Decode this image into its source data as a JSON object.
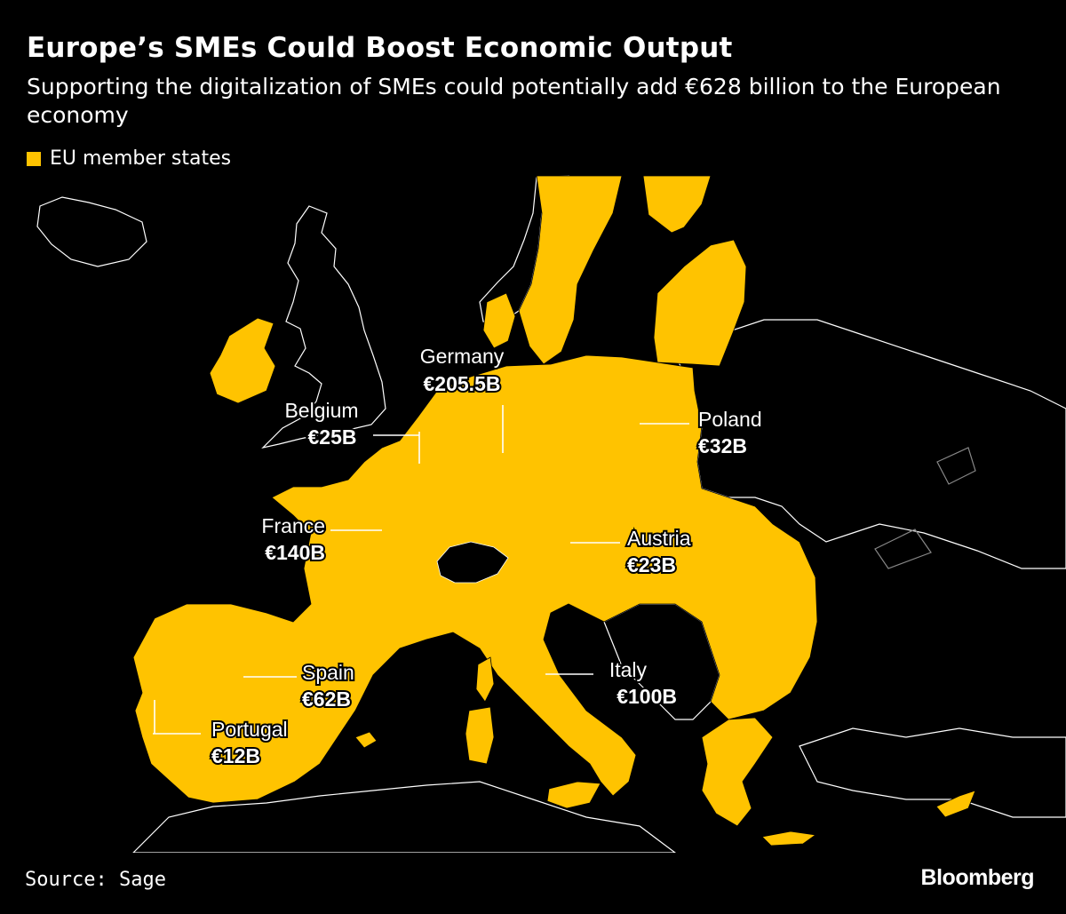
{
  "header": {
    "title": "Europe’s SMEs Could Boost Economic Output",
    "subtitle": "Supporting the digitalization of SMEs could potentially add €628 billion to the European economy"
  },
  "legend": {
    "label": "EU member states",
    "color": "#FFC300"
  },
  "colors": {
    "background": "#000000",
    "eu": "#FFC300",
    "non_eu_border": "#FFFFFF"
  },
  "labels": [
    {
      "country": "Germany",
      "value": "€205.5B"
    },
    {
      "country": "Belgium",
      "value": "€25B"
    },
    {
      "country": "Poland",
      "value": "€32B"
    },
    {
      "country": "France",
      "value": "€140B"
    },
    {
      "country": "Austria",
      "value": "€23B"
    },
    {
      "country": "Spain",
      "value": "€62B"
    },
    {
      "country": "Italy",
      "value": "€100B"
    },
    {
      "country": "Portugal",
      "value": "€12B"
    }
  ],
  "footer": {
    "source": "Source: Sage",
    "logo": "Bloomberg"
  }
}
